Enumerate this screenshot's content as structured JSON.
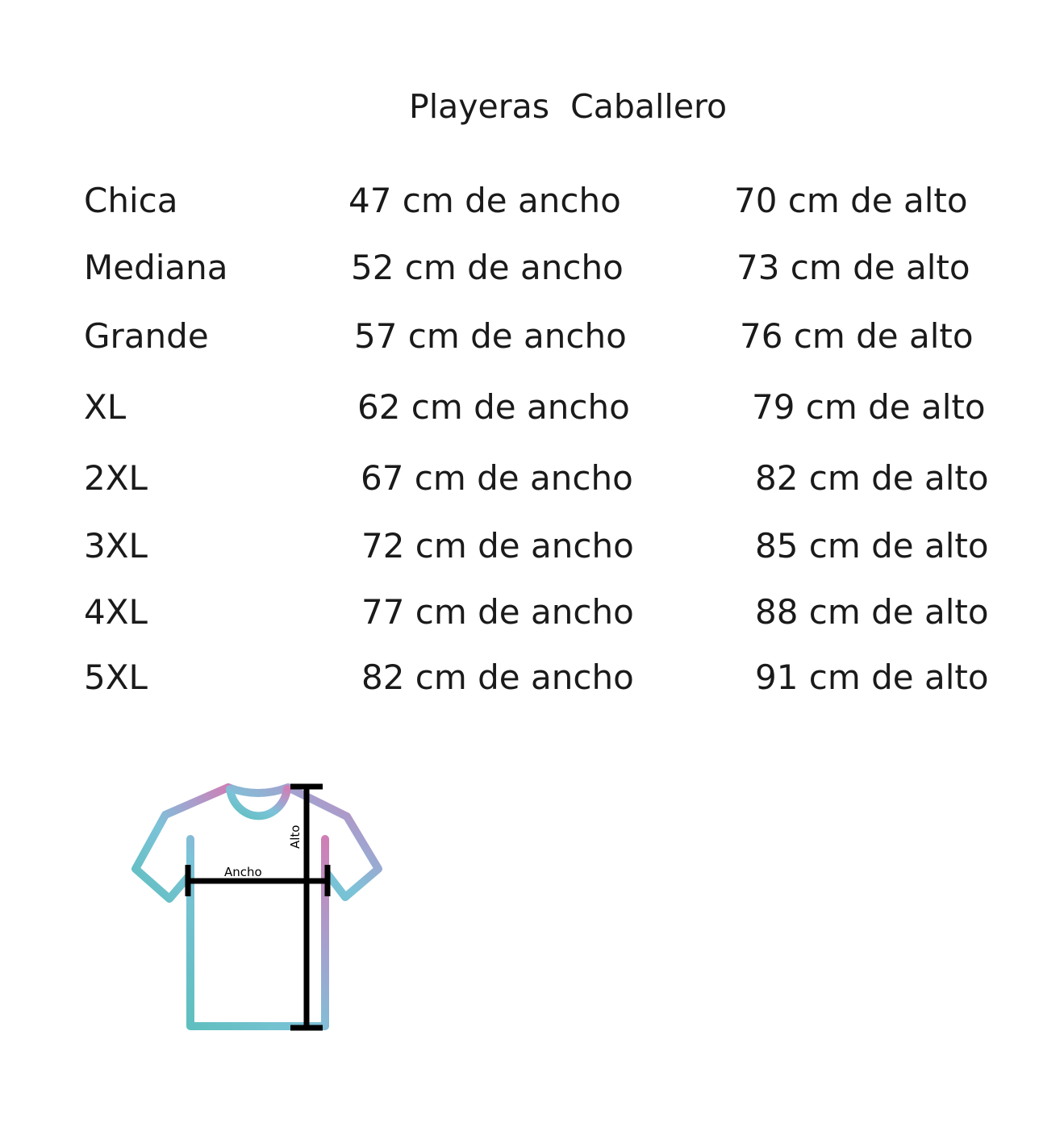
{
  "title": "Playeras  Caballero",
  "rows": [
    {
      "size": "Chica",
      "ancho": "47 cm de ancho",
      "alto": "70 cm de alto"
    },
    {
      "size": "Mediana",
      "ancho": "52 cm de ancho",
      "alto": "73 cm de alto"
    },
    {
      "size": "Grande",
      "ancho": "57 cm de ancho",
      "alto": "76 cm de alto"
    },
    {
      "size": "XL",
      "ancho": "62 cm de ancho",
      "alto": "79 cm de alto"
    },
    {
      "size": "2XL",
      "ancho": "67 cm de ancho",
      "alto": "82 cm de alto"
    },
    {
      "size": "3XL",
      "ancho": "72 cm de ancho",
      "alto": "85 cm de alto"
    },
    {
      "size": "4XL",
      "ancho": "77 cm de ancho",
      "alto": "88 cm de alto"
    },
    {
      "size": "5XL",
      "ancho": "82 cm de ancho",
      "alto": "91 cm de alto"
    }
  ],
  "diagram": {
    "width_label": "Ancho",
    "height_label": "Alto",
    "colors": {
      "gradient_start": "#5fc4c9",
      "gradient_mid": "#8fb0d8",
      "gradient_end": "#c784b8",
      "measure": "#000000"
    }
  }
}
